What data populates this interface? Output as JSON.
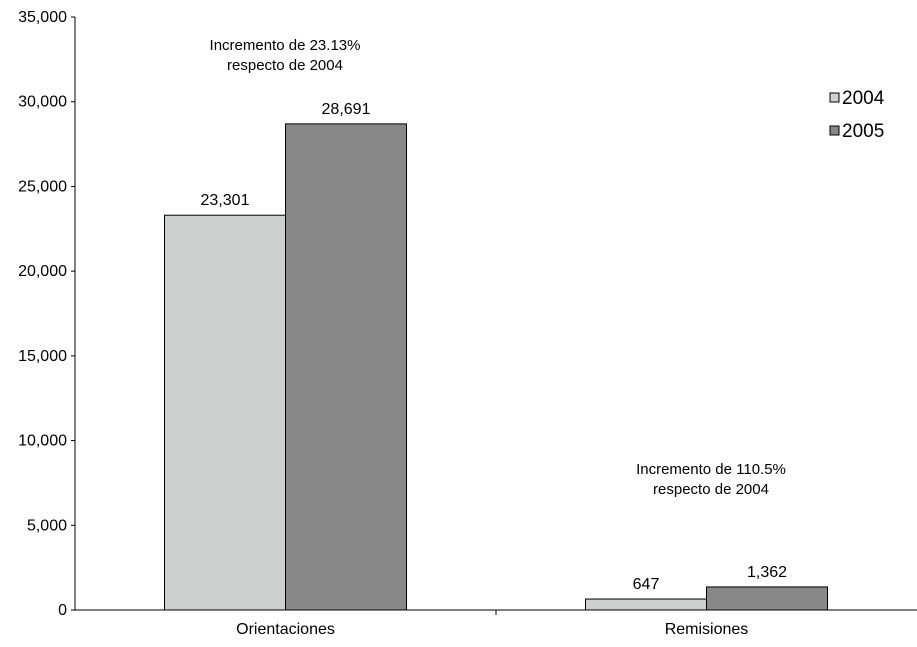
{
  "chart_data": {
    "type": "bar",
    "categories": [
      "Orientaciones",
      "Remisiones"
    ],
    "series": [
      {
        "name": "2004",
        "values": [
          23301,
          647
        ],
        "color": "#cdd0cf"
      },
      {
        "name": "2005",
        "values": [
          28691,
          1362
        ],
        "color": "#888888"
      }
    ],
    "data_labels": [
      [
        "23,301",
        "647"
      ],
      [
        "28,691",
        "1,362"
      ]
    ],
    "yticks": [
      0,
      5000,
      10000,
      15000,
      20000,
      25000,
      30000,
      35000
    ],
    "ytick_labels": [
      "0",
      "5,000",
      "10,000",
      "15,000",
      "20,000",
      "25,000",
      "30,000",
      "35,000"
    ],
    "ylim": [
      0,
      35000
    ],
    "title": "",
    "xlabel": "",
    "ylabel": "",
    "grid": false,
    "legend_position": "top-right",
    "annotations": [
      {
        "category": "Orientaciones",
        "lines": [
          "Incremento de 23.13%",
          "respecto de 2004"
        ]
      },
      {
        "category": "Remisiones",
        "lines": [
          "Incremento de 110.5%",
          "respecto de 2004"
        ]
      }
    ]
  }
}
